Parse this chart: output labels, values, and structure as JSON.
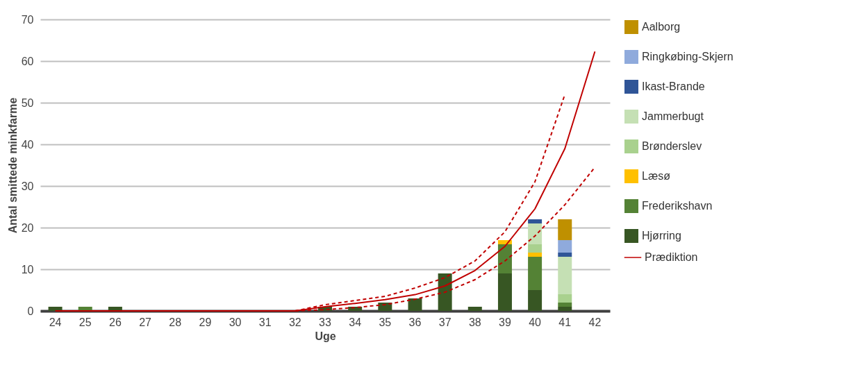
{
  "chart_data": {
    "type": "bar",
    "stacked": true,
    "xlabel": "Uge",
    "ylabel": "Antal smittede minkfarme",
    "categories": [
      "24",
      "25",
      "26",
      "27",
      "28",
      "29",
      "30",
      "31",
      "32",
      "33",
      "34",
      "35",
      "36",
      "37",
      "38",
      "39",
      "40",
      "41",
      "42"
    ],
    "ylim": [
      0,
      70
    ],
    "yticks": [
      0,
      10,
      20,
      30,
      40,
      50,
      60,
      70
    ],
    "grid": "y",
    "legend": "right",
    "series": [
      {
        "name": "Hjørring",
        "color": "#375623",
        "values": [
          1,
          null,
          1,
          null,
          null,
          null,
          null,
          null,
          null,
          1,
          1,
          2,
          3,
          9,
          1,
          9,
          5,
          1,
          null
        ]
      },
      {
        "name": "Frederikshavn",
        "color": "#548235",
        "values": [
          null,
          1,
          null,
          null,
          null,
          null,
          null,
          null,
          null,
          null,
          null,
          null,
          null,
          null,
          null,
          7,
          8,
          1,
          null
        ]
      },
      {
        "name": "Læsø",
        "color": "#ffc000",
        "values": [
          null,
          null,
          null,
          null,
          null,
          null,
          null,
          null,
          null,
          null,
          null,
          null,
          null,
          null,
          null,
          1,
          1,
          null,
          null
        ]
      },
      {
        "name": "Brønderslev",
        "color": "#a9d18e",
        "values": [
          null,
          null,
          null,
          null,
          null,
          null,
          null,
          null,
          null,
          null,
          null,
          null,
          null,
          null,
          null,
          null,
          2,
          2,
          null
        ]
      },
      {
        "name": "Jammerbugt",
        "color": "#c5e0b4",
        "values": [
          null,
          null,
          null,
          null,
          null,
          null,
          null,
          null,
          null,
          null,
          null,
          null,
          null,
          null,
          null,
          null,
          5,
          9,
          null
        ]
      },
      {
        "name": "Ikast-Brande",
        "color": "#2f5597",
        "values": [
          null,
          null,
          null,
          null,
          null,
          null,
          null,
          null,
          null,
          null,
          null,
          null,
          null,
          null,
          null,
          null,
          1,
          1,
          null
        ]
      },
      {
        "name": "Ringkøbing-Skjern",
        "color": "#8faadc",
        "values": [
          null,
          null,
          null,
          null,
          null,
          null,
          null,
          null,
          null,
          null,
          null,
          null,
          null,
          null,
          null,
          null,
          null,
          3,
          null
        ]
      },
      {
        "name": "Aalborg",
        "color": "#bf9000",
        "values": [
          null,
          null,
          null,
          null,
          null,
          null,
          null,
          null,
          null,
          null,
          null,
          null,
          null,
          null,
          null,
          null,
          null,
          5,
          null
        ]
      },
      {
        "name": "Prædiktion",
        "type": "line",
        "line_style": "solid",
        "color": "#c00000",
        "values": [
          0,
          0,
          0,
          0,
          0,
          0,
          0,
          0,
          0,
          1,
          1.8,
          2.7,
          3.9,
          6,
          9.7,
          15.5,
          24.5,
          39,
          62.3
        ]
      },
      {
        "type": "line",
        "line_style": "dashed",
        "color": "#c00000",
        "values": [
          null,
          null,
          null,
          null,
          null,
          null,
          null,
          null,
          0,
          1.5,
          2.5,
          3.5,
          5.5,
          8,
          12,
          19,
          31,
          52,
          null
        ]
      },
      {
        "type": "line",
        "line_style": "dashed",
        "color": "#c00000",
        "values": [
          null,
          null,
          null,
          null,
          null,
          null,
          null,
          null,
          0,
          0.3,
          0.8,
          1.5,
          2.8,
          4.5,
          7.5,
          12,
          18,
          25.5,
          34.5
        ]
      }
    ]
  }
}
